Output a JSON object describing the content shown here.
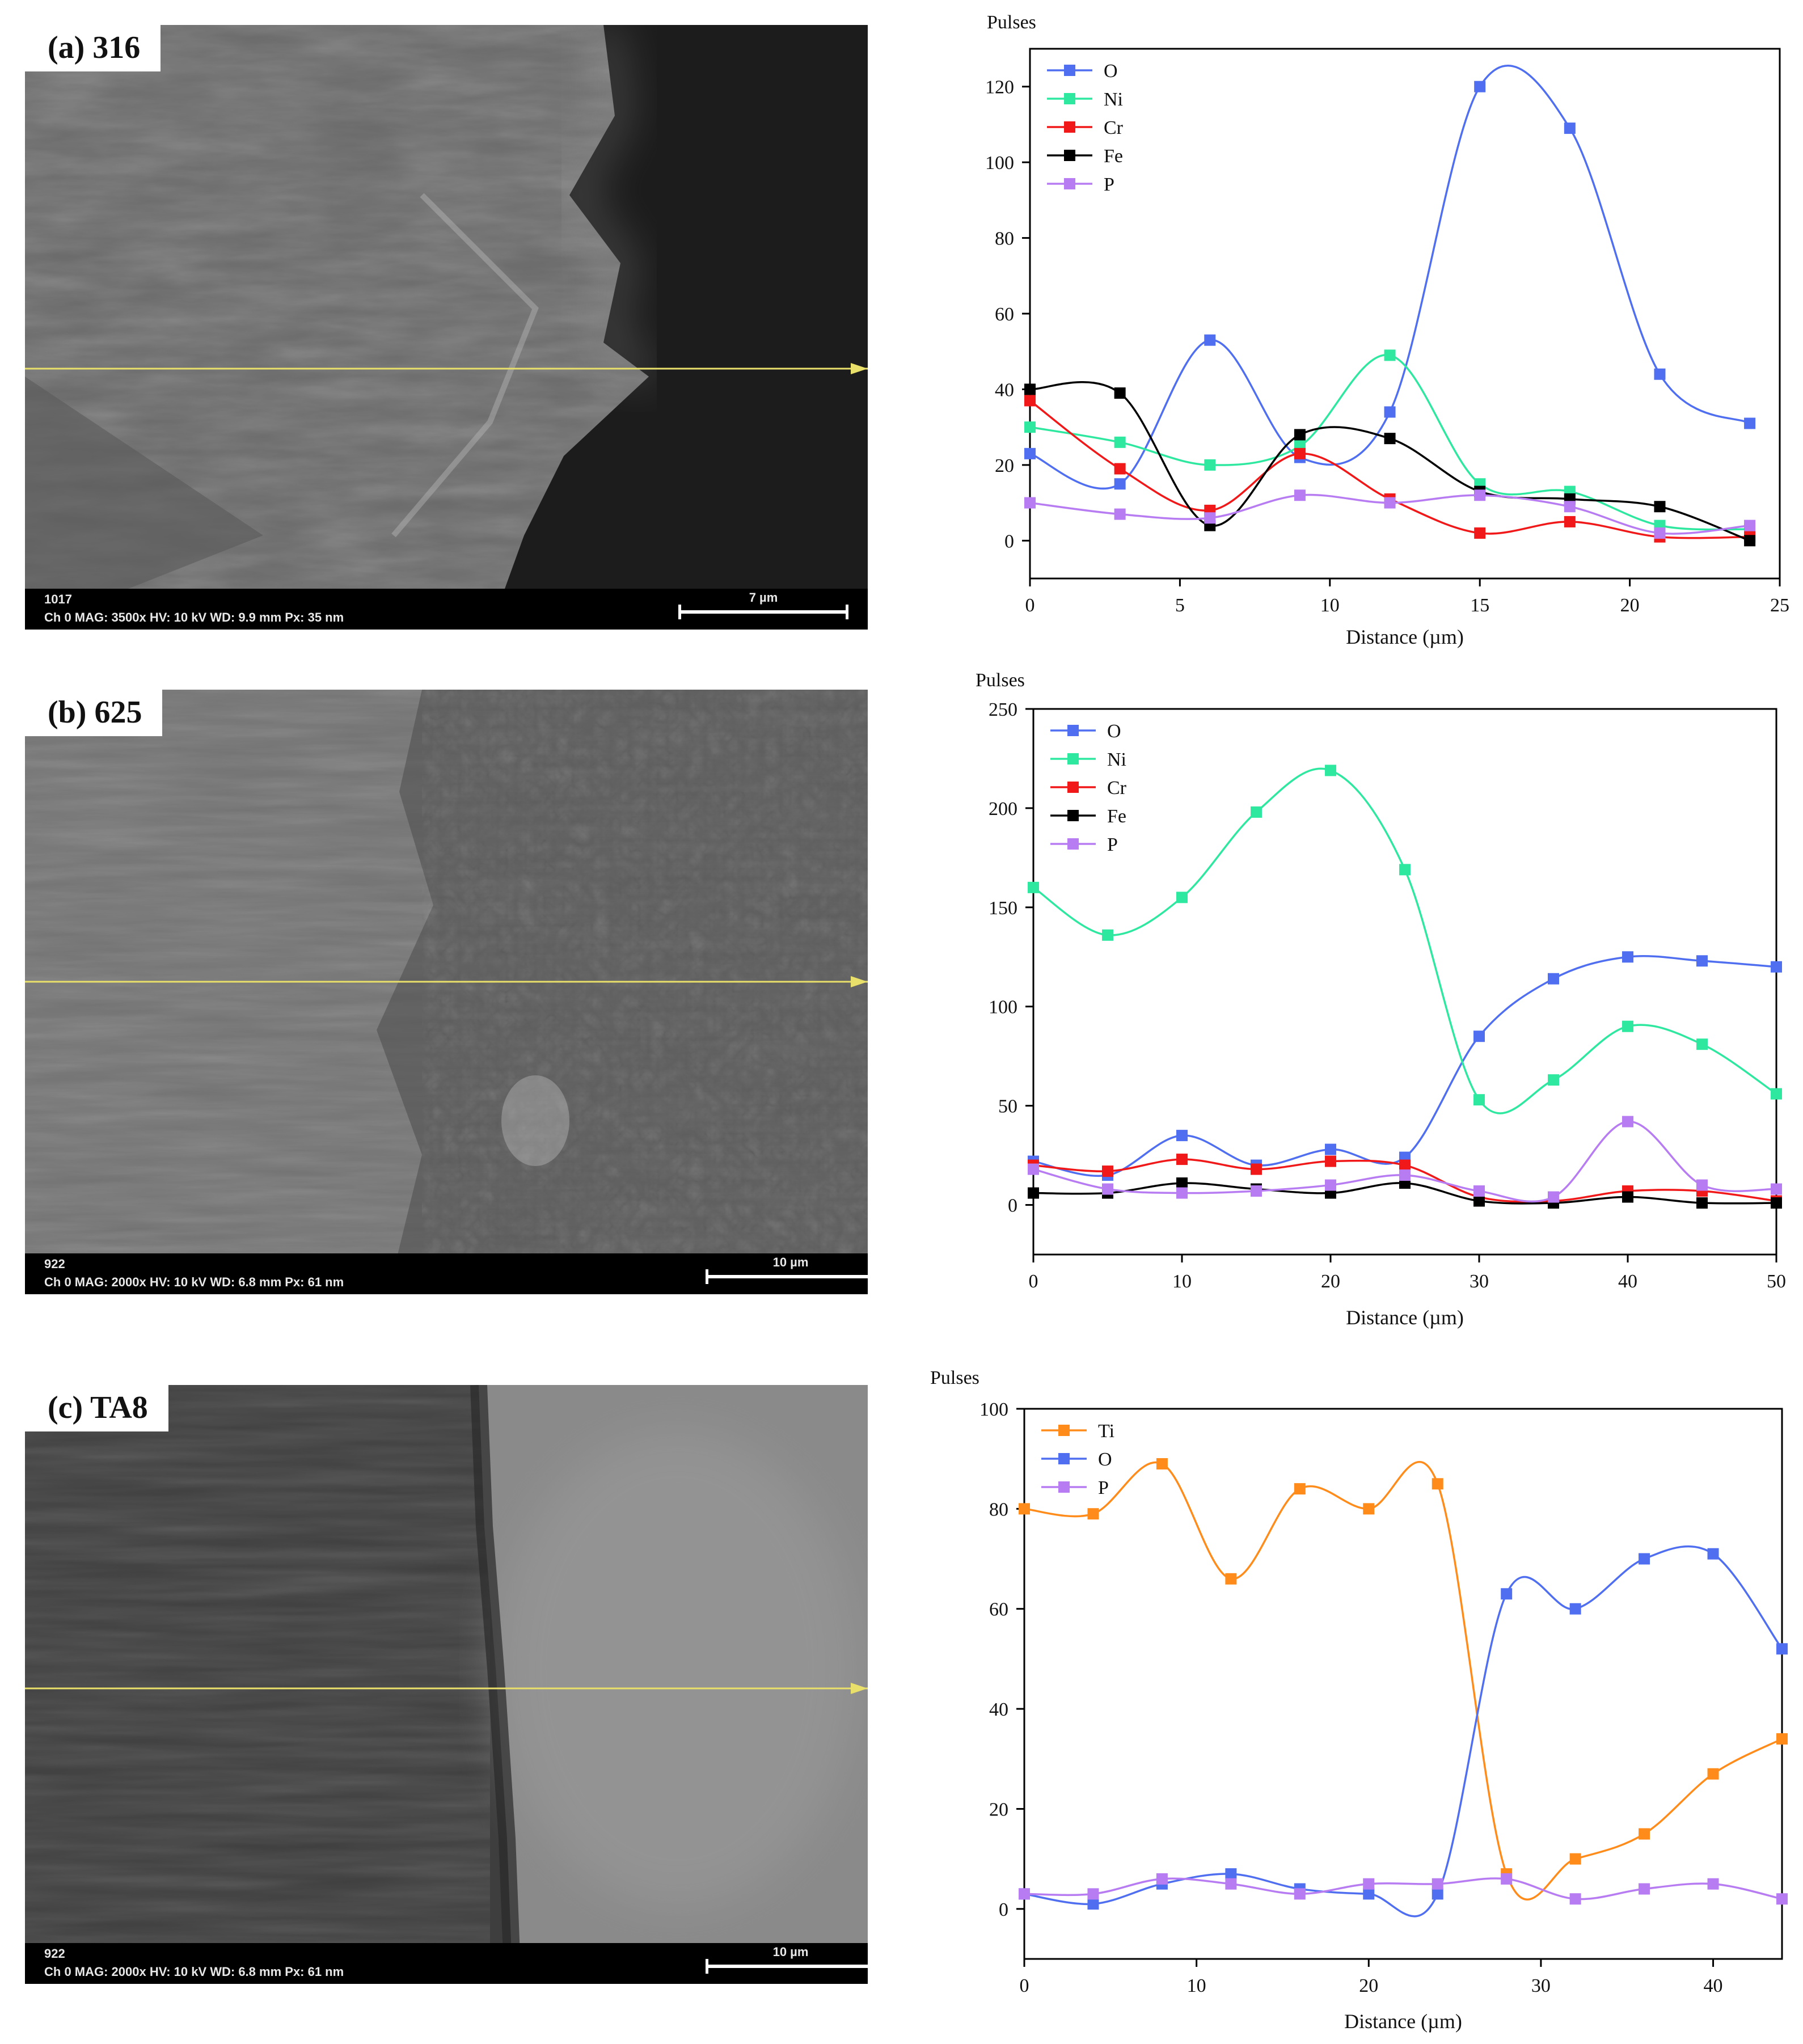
{
  "panels": [
    {
      "label": "(a) 316",
      "info_code": "1017",
      "info_meta": "Ch 0    MAG: 3500x    HV: 10 kV    WD: 9.9 mm    Px: 35 nm",
      "scale_text": "7 µm",
      "texture": "rough"
    },
    {
      "label": "(b) 625",
      "info_code": "922",
      "info_meta": "Ch 0    MAG: 2000x    HV: 10 kV    WD: 6.8 mm    Px: 61 nm",
      "scale_text": "10 µm",
      "texture": "porous"
    },
    {
      "label": "(c) TA8",
      "info_code": "922",
      "info_meta": "Ch 0    MAG: 2000x    HV: 10 kV    WD: 6.8 mm    Px: 61 nm",
      "scale_text": "10 µm",
      "texture": "smooth"
    }
  ],
  "colors": {
    "O": "#4f6ff0",
    "Ni": "#2ee8a0",
    "Cr": "#f01818",
    "Fe": "#000000",
    "P": "#b77cf2",
    "Ti": "#ff8c1a",
    "scan_line": "#e8e06a"
  },
  "chart_data": [
    {
      "type": "line",
      "title": "",
      "xlabel": "Distance (µm)",
      "ylabel": "Pulses",
      "xlim": [
        0,
        25
      ],
      "ylim": [
        -10,
        130
      ],
      "xticks": [
        0,
        5,
        10,
        15,
        20,
        25
      ],
      "yticks": [
        0,
        20,
        40,
        60,
        80,
        100,
        120
      ],
      "legend_position": "top-left",
      "x": [
        0,
        3,
        6,
        9,
        12,
        15,
        18,
        21,
        24
      ],
      "series": [
        {
          "name": "O",
          "color": "#4f6ff0",
          "values": [
            23,
            15,
            53,
            22,
            34,
            120,
            109,
            44,
            31
          ]
        },
        {
          "name": "Ni",
          "color": "#2ee8a0",
          "values": [
            30,
            26,
            20,
            25,
            49,
            15,
            13,
            4,
            3
          ]
        },
        {
          "name": "Cr",
          "color": "#f01818",
          "values": [
            37,
            19,
            8,
            23,
            11,
            2,
            5,
            1,
            1
          ]
        },
        {
          "name": "Fe",
          "color": "#000000",
          "values": [
            40,
            39,
            4,
            28,
            27,
            13,
            11,
            9,
            0
          ]
        },
        {
          "name": "P",
          "color": "#b77cf2",
          "values": [
            10,
            7,
            6,
            12,
            10,
            12,
            9,
            2,
            4
          ]
        }
      ]
    },
    {
      "type": "line",
      "title": "",
      "xlabel": "Distance (µm)",
      "ylabel": "Pulses",
      "xlim": [
        0,
        50
      ],
      "ylim": [
        -25,
        250
      ],
      "xticks": [
        0,
        10,
        20,
        30,
        40,
        50
      ],
      "yticks": [
        0,
        50,
        100,
        150,
        200,
        250
      ],
      "legend_position": "top-left",
      "x": [
        0,
        5,
        10,
        15,
        20,
        25,
        30,
        35,
        40,
        45,
        50
      ],
      "series": [
        {
          "name": "O",
          "color": "#4f6ff0",
          "values": [
            22,
            15,
            35,
            20,
            28,
            24,
            85,
            114,
            125,
            123,
            120
          ]
        },
        {
          "name": "Ni",
          "color": "#2ee8a0",
          "values": [
            160,
            136,
            155,
            198,
            219,
            169,
            53,
            63,
            90,
            81,
            56
          ]
        },
        {
          "name": "Cr",
          "color": "#f01818",
          "values": [
            20,
            17,
            23,
            18,
            22,
            20,
            4,
            2,
            7,
            7,
            2
          ]
        },
        {
          "name": "Fe",
          "color": "#000000",
          "values": [
            6,
            6,
            11,
            8,
            6,
            11,
            2,
            1,
            4,
            1,
            1
          ]
        },
        {
          "name": "P",
          "color": "#b77cf2",
          "values": [
            18,
            8,
            6,
            7,
            10,
            15,
            7,
            4,
            42,
            10,
            8
          ]
        }
      ]
    },
    {
      "type": "line",
      "title": "",
      "xlabel": "Distance (µm)",
      "ylabel": "Pulses",
      "xlim": [
        0,
        44
      ],
      "ylim": [
        -10,
        100
      ],
      "xticks": [
        0,
        10,
        20,
        30,
        40
      ],
      "yticks": [
        0,
        20,
        40,
        60,
        80,
        100
      ],
      "legend_position": "top-left",
      "x": [
        0,
        4,
        8,
        12,
        16,
        20,
        24,
        28,
        32,
        36,
        40,
        44
      ],
      "series": [
        {
          "name": "Ti",
          "color": "#ff8c1a",
          "values": [
            80,
            79,
            89,
            66,
            84,
            80,
            85,
            7,
            10,
            15,
            27,
            34
          ]
        },
        {
          "name": "O",
          "color": "#4f6ff0",
          "values": [
            3,
            1,
            5,
            7,
            4,
            3,
            3,
            63,
            60,
            70,
            71,
            52
          ]
        },
        {
          "name": "P",
          "color": "#b77cf2",
          "values": [
            3,
            3,
            6,
            5,
            3,
            5,
            5,
            6,
            2,
            4,
            5,
            2
          ]
        }
      ]
    }
  ]
}
